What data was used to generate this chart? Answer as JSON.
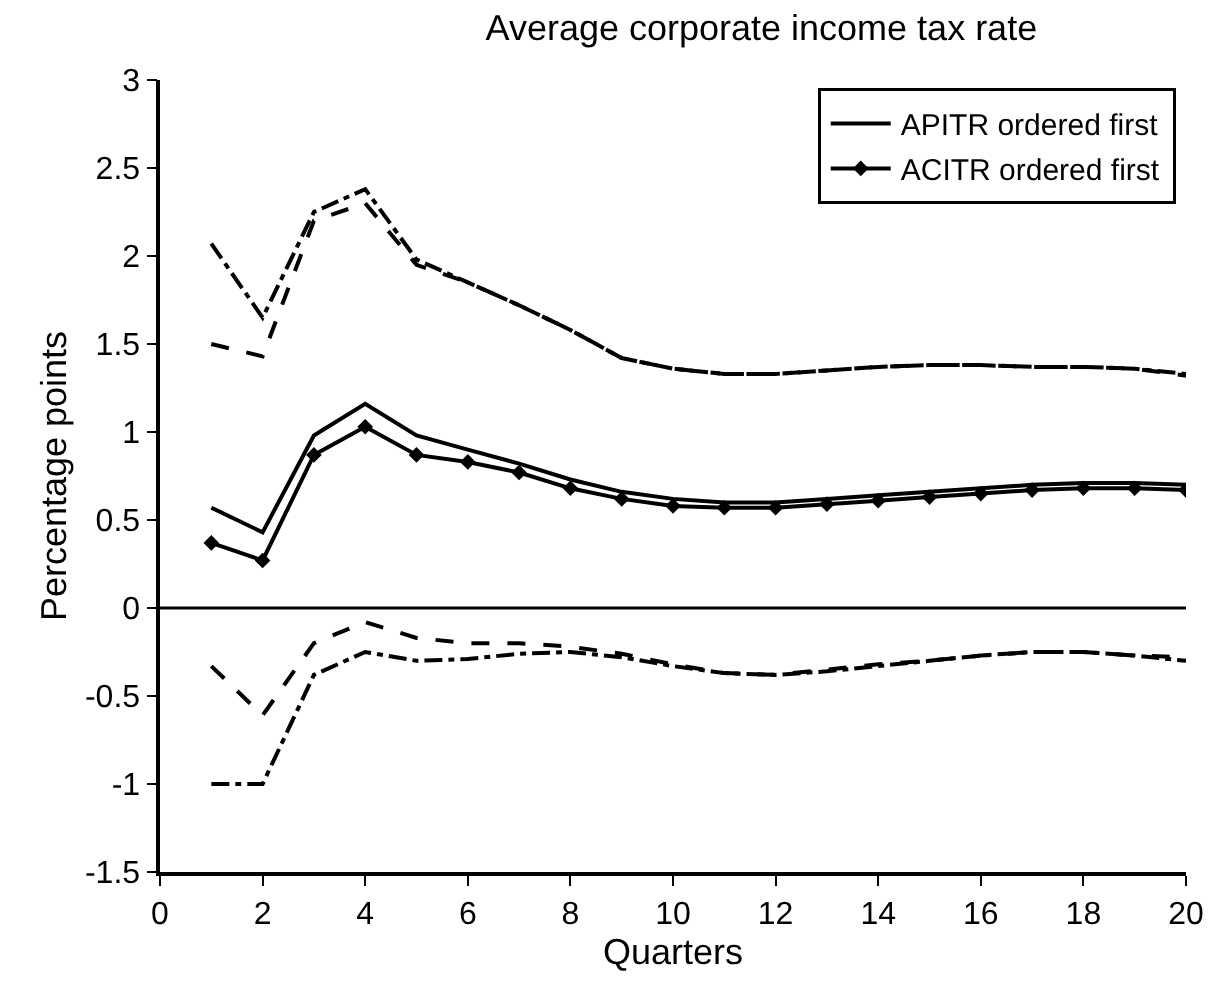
{
  "chart_data": {
    "type": "line",
    "title": "Average corporate income tax rate",
    "xlabel": "Quarters",
    "ylabel": "Percentage points",
    "x": [
      1,
      2,
      3,
      4,
      5,
      6,
      7,
      8,
      9,
      10,
      11,
      12,
      13,
      14,
      15,
      16,
      17,
      18,
      19,
      20
    ],
    "xlim": [
      0,
      20
    ],
    "xticks": [
      0,
      2,
      4,
      6,
      8,
      10,
      12,
      14,
      16,
      18,
      20
    ],
    "ylim": [
      -1.5,
      3
    ],
    "yticks": [
      -1.5,
      -1,
      -0.5,
      0,
      0.5,
      1,
      1.5,
      2,
      2.5,
      3
    ],
    "legend": "top right",
    "ref_lines": [
      {
        "axis": "y",
        "value": 0,
        "color": "#000000",
        "line_style": "solid"
      }
    ],
    "series": [
      {
        "name": "APITR ordered first",
        "color": "#000000",
        "line_style": "solid",
        "marker": "none",
        "values": [
          0.57,
          0.43,
          0.98,
          1.16,
          0.98,
          0.9,
          0.82,
          0.73,
          0.66,
          0.62,
          0.6,
          0.6,
          0.62,
          0.64,
          0.66,
          0.68,
          0.7,
          0.71,
          0.71,
          0.7
        ]
      },
      {
        "name": "ACITR ordered first",
        "color": "#000000",
        "line_style": "solid",
        "marker": "diamond",
        "values": [
          0.37,
          0.27,
          0.87,
          1.03,
          0.87,
          0.83,
          0.77,
          0.68,
          0.62,
          0.58,
          0.57,
          0.57,
          0.59,
          0.61,
          0.63,
          0.65,
          0.67,
          0.68,
          0.68,
          0.67
        ]
      },
      {
        "color": "#000000",
        "line_style": "dashed",
        "marker": "none",
        "values": [
          1.5,
          1.43,
          2.2,
          2.3,
          1.95,
          1.85,
          1.72,
          1.58,
          1.42,
          1.36,
          1.33,
          1.33,
          1.35,
          1.37,
          1.38,
          1.38,
          1.37,
          1.37,
          1.36,
          1.32
        ]
      },
      {
        "color": "#000000",
        "line_style": "dotted",
        "marker": "none",
        "values": [
          2.07,
          1.65,
          2.25,
          2.38,
          1.98,
          1.85,
          1.72,
          1.58,
          1.42,
          1.36,
          1.33,
          1.33,
          1.35,
          1.37,
          1.38,
          1.38,
          1.37,
          1.37,
          1.36,
          1.33
        ]
      },
      {
        "color": "#000000",
        "line_style": "dashed",
        "marker": "none",
        "values": [
          -0.33,
          -0.61,
          -0.2,
          -0.08,
          -0.17,
          -0.2,
          -0.2,
          -0.22,
          -0.26,
          -0.32,
          -0.37,
          -0.38,
          -0.35,
          -0.32,
          -0.3,
          -0.27,
          -0.25,
          -0.25,
          -0.27,
          -0.28
        ]
      },
      {
        "color": "#000000",
        "line_style": "dotted",
        "marker": "none",
        "values": [
          -1.0,
          -1.0,
          -0.38,
          -0.25,
          -0.3,
          -0.29,
          -0.26,
          -0.25,
          -0.28,
          -0.33,
          -0.37,
          -0.38,
          -0.36,
          -0.33,
          -0.3,
          -0.27,
          -0.25,
          -0.25,
          -0.27,
          -0.3
        ]
      }
    ]
  }
}
